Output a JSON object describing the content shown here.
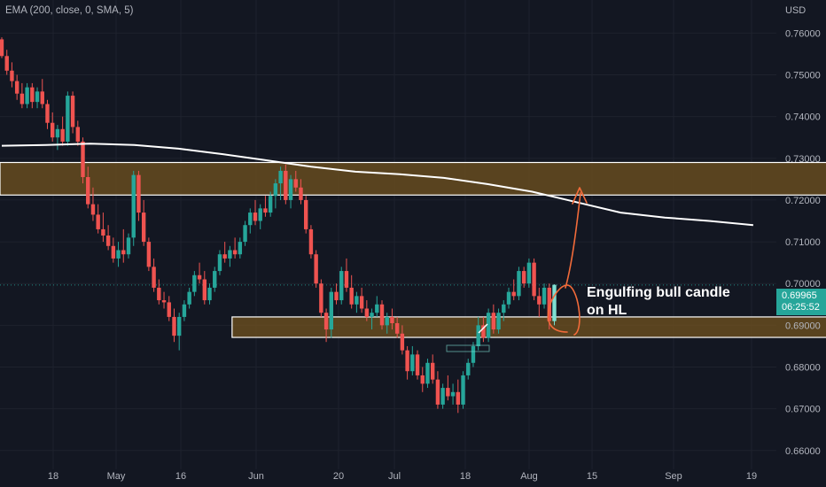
{
  "legend": "EMA (200, close, 0, SMA, 5)",
  "currency": "USD",
  "last_price": "0.69965",
  "countdown": "06:25:52",
  "annotation": {
    "line1": "Engulfing bull candle",
    "line2": "on HL"
  },
  "colors": {
    "bull": "#26a69a",
    "bull_highlight": "#7fdfd3",
    "bear": "#ef5350",
    "ema": "#ffffff",
    "zone_fill": "#6b4f1f",
    "zone_border": "#ffffff",
    "arrow": "#f26b3a",
    "background": "#131722"
  },
  "chart_data": {
    "type": "candlestick",
    "y_range": [
      0.6555,
      0.7675
    ],
    "y_ticks": [
      "0.76000",
      "0.75000",
      "0.74000",
      "0.73000",
      "0.72000",
      "0.71000",
      "0.70000",
      "0.69000",
      "0.68000",
      "0.67000",
      "0.66000"
    ],
    "x_labels": [
      "18",
      "May",
      "16",
      "Jun",
      "20",
      "Jul",
      "18",
      "Aug",
      "15",
      "Sep",
      "19"
    ],
    "candles": [
      [
        0.7585,
        0.759,
        0.754,
        0.7545
      ],
      [
        0.7545,
        0.756,
        0.75,
        0.751
      ],
      [
        0.751,
        0.753,
        0.747,
        0.7485
      ],
      [
        0.7485,
        0.75,
        0.744,
        0.7455
      ],
      [
        0.7455,
        0.748,
        0.742,
        0.743
      ],
      [
        0.743,
        0.748,
        0.742,
        0.747
      ],
      [
        0.747,
        0.748,
        0.742,
        0.7435
      ],
      [
        0.7435,
        0.747,
        0.742,
        0.746
      ],
      [
        0.746,
        0.749,
        0.742,
        0.743
      ],
      [
        0.743,
        0.744,
        0.737,
        0.7385
      ],
      [
        0.7385,
        0.741,
        0.734,
        0.735
      ],
      [
        0.735,
        0.738,
        0.732,
        0.737
      ],
      [
        0.737,
        0.74,
        0.733,
        0.734
      ],
      [
        0.734,
        0.746,
        0.733,
        0.745
      ],
      [
        0.745,
        0.746,
        0.736,
        0.7375
      ],
      [
        0.7375,
        0.739,
        0.733,
        0.734
      ],
      [
        0.734,
        0.735,
        0.724,
        0.7255
      ],
      [
        0.7255,
        0.728,
        0.718,
        0.719
      ],
      [
        0.719,
        0.723,
        0.715,
        0.7165
      ],
      [
        0.7165,
        0.719,
        0.712,
        0.713
      ],
      [
        0.713,
        0.717,
        0.71,
        0.7115
      ],
      [
        0.7115,
        0.714,
        0.708,
        0.709
      ],
      [
        0.709,
        0.711,
        0.705,
        0.706
      ],
      [
        0.706,
        0.71,
        0.704,
        0.708
      ],
      [
        0.708,
        0.713,
        0.705,
        0.707
      ],
      [
        0.707,
        0.712,
        0.706,
        0.711
      ],
      [
        0.711,
        0.727,
        0.709,
        0.726
      ],
      [
        0.726,
        0.727,
        0.715,
        0.717
      ],
      [
        0.717,
        0.72,
        0.709,
        0.71
      ],
      [
        0.71,
        0.711,
        0.703,
        0.704
      ],
      [
        0.704,
        0.706,
        0.698,
        0.699
      ],
      [
        0.699,
        0.701,
        0.695,
        0.696
      ],
      [
        0.696,
        0.698,
        0.694,
        0.6955
      ],
      [
        0.6955,
        0.697,
        0.691,
        0.692
      ],
      [
        0.692,
        0.694,
        0.686,
        0.6875
      ],
      [
        0.6875,
        0.693,
        0.684,
        0.692
      ],
      [
        0.692,
        0.696,
        0.691,
        0.695
      ],
      [
        0.695,
        0.699,
        0.694,
        0.698
      ],
      [
        0.698,
        0.703,
        0.697,
        0.702
      ],
      [
        0.702,
        0.705,
        0.7,
        0.701
      ],
      [
        0.701,
        0.703,
        0.695,
        0.696
      ],
      [
        0.696,
        0.7,
        0.695,
        0.699
      ],
      [
        0.699,
        0.704,
        0.698,
        0.703
      ],
      [
        0.703,
        0.708,
        0.702,
        0.707
      ],
      [
        0.707,
        0.71,
        0.705,
        0.706
      ],
      [
        0.706,
        0.709,
        0.704,
        0.708
      ],
      [
        0.708,
        0.711,
        0.706,
        0.707
      ],
      [
        0.707,
        0.711,
        0.706,
        0.71
      ],
      [
        0.71,
        0.715,
        0.709,
        0.714
      ],
      [
        0.714,
        0.718,
        0.712,
        0.717
      ],
      [
        0.717,
        0.72,
        0.714,
        0.715
      ],
      [
        0.715,
        0.719,
        0.713,
        0.718
      ],
      [
        0.718,
        0.721,
        0.716,
        0.717
      ],
      [
        0.717,
        0.722,
        0.716,
        0.721
      ],
      [
        0.721,
        0.725,
        0.718,
        0.724
      ],
      [
        0.724,
        0.728,
        0.72,
        0.727
      ],
      [
        0.727,
        0.7285,
        0.719,
        0.72
      ],
      [
        0.72,
        0.726,
        0.718,
        0.725
      ],
      [
        0.725,
        0.727,
        0.722,
        0.723
      ],
      [
        0.723,
        0.725,
        0.719,
        0.72
      ],
      [
        0.72,
        0.721,
        0.712,
        0.713
      ],
      [
        0.713,
        0.714,
        0.706,
        0.707
      ],
      [
        0.707,
        0.708,
        0.699,
        0.7
      ],
      [
        0.7,
        0.701,
        0.692,
        0.693
      ],
      [
        0.693,
        0.694,
        0.686,
        0.689
      ],
      [
        0.689,
        0.699,
        0.687,
        0.698
      ],
      [
        0.698,
        0.7,
        0.695,
        0.696
      ],
      [
        0.696,
        0.704,
        0.695,
        0.703
      ],
      [
        0.703,
        0.706,
        0.698,
        0.699
      ],
      [
        0.699,
        0.702,
        0.694,
        0.695
      ],
      [
        0.695,
        0.698,
        0.693,
        0.697
      ],
      [
        0.697,
        0.699,
        0.693,
        0.694
      ],
      [
        0.694,
        0.696,
        0.691,
        0.692
      ],
      [
        0.692,
        0.694,
        0.689,
        0.693
      ],
      [
        0.693,
        0.697,
        0.692,
        0.695
      ],
      [
        0.695,
        0.696,
        0.689,
        0.69
      ],
      [
        0.69,
        0.693,
        0.688,
        0.692
      ],
      [
        0.692,
        0.694,
        0.689,
        0.6905
      ],
      [
        0.6905,
        0.692,
        0.687,
        0.688
      ],
      [
        0.688,
        0.69,
        0.683,
        0.684
      ],
      [
        0.684,
        0.685,
        0.677,
        0.679
      ],
      [
        0.679,
        0.685,
        0.678,
        0.683
      ],
      [
        0.683,
        0.684,
        0.677,
        0.678
      ],
      [
        0.678,
        0.68,
        0.674,
        0.676
      ],
      [
        0.676,
        0.682,
        0.675,
        0.681
      ],
      [
        0.681,
        0.683,
        0.676,
        0.677
      ],
      [
        0.677,
        0.679,
        0.67,
        0.671
      ],
      [
        0.671,
        0.676,
        0.67,
        0.675
      ],
      [
        0.675,
        0.678,
        0.672,
        0.673
      ],
      [
        0.673,
        0.676,
        0.671,
        0.674
      ],
      [
        0.674,
        0.677,
        0.669,
        0.671
      ],
      [
        0.671,
        0.679,
        0.67,
        0.678
      ],
      [
        0.678,
        0.682,
        0.677,
        0.681
      ],
      [
        0.681,
        0.686,
        0.68,
        0.685
      ],
      [
        0.685,
        0.692,
        0.684,
        0.69
      ],
      [
        0.69,
        0.692,
        0.686,
        0.687
      ],
      [
        0.687,
        0.694,
        0.686,
        0.693
      ],
      [
        0.693,
        0.695,
        0.688,
        0.689
      ],
      [
        0.689,
        0.694,
        0.688,
        0.693
      ],
      [
        0.693,
        0.696,
        0.691,
        0.695
      ],
      [
        0.695,
        0.699,
        0.694,
        0.698
      ],
      [
        0.698,
        0.701,
        0.696,
        0.697
      ],
      [
        0.697,
        0.704,
        0.696,
        0.703
      ],
      [
        0.703,
        0.704,
        0.699,
        0.7
      ],
      [
        0.7,
        0.706,
        0.699,
        0.705
      ],
      [
        0.705,
        0.706,
        0.696,
        0.697
      ],
      [
        0.697,
        0.699,
        0.692,
        0.695
      ],
      [
        0.695,
        0.7,
        0.694,
        0.699
      ],
      [
        0.699,
        0.7,
        0.689,
        0.691
      ],
      [
        0.691,
        0.6998,
        0.69,
        0.6997
      ]
    ],
    "ema": [
      [
        0,
        0.733
      ],
      [
        0.08,
        0.7332
      ],
      [
        0.16,
        0.7335
      ],
      [
        0.24,
        0.7332
      ],
      [
        0.32,
        0.7323
      ],
      [
        0.4,
        0.731
      ],
      [
        0.48,
        0.7295
      ],
      [
        0.56,
        0.728
      ],
      [
        0.64,
        0.7268
      ],
      [
        0.72,
        0.7262
      ],
      [
        0.8,
        0.7253
      ],
      [
        0.88,
        0.7238
      ],
      [
        0.96,
        0.722
      ],
      [
        1.04,
        0.7195
      ],
      [
        1.12,
        0.717
      ],
      [
        1.2,
        0.7158
      ],
      [
        1.28,
        0.715
      ],
      [
        1.36,
        0.714
      ]
    ],
    "zones": [
      {
        "top": 0.729,
        "bottom": 0.7212,
        "end": 1.8
      },
      {
        "top": 0.692,
        "bottom": 0.6871,
        "start": 0.42,
        "end": 1.74
      }
    ]
  }
}
